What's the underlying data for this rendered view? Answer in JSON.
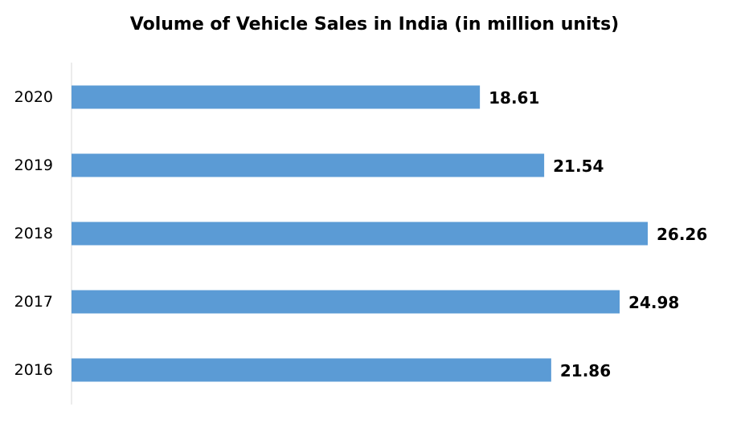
{
  "chart_data": {
    "type": "bar",
    "orientation": "horizontal",
    "title": "Volume of Vehicle Sales in India (in million units)",
    "categories": [
      "2020",
      "2019",
      "2018",
      "2017",
      "2016"
    ],
    "values": [
      18.61,
      21.54,
      26.26,
      24.98,
      21.86
    ],
    "value_labels": [
      "18.61",
      "21.54",
      "26.26",
      "24.98",
      "21.86"
    ],
    "xlabel": "",
    "ylabel": "",
    "xlim": [
      0,
      26.26
    ],
    "grid": false,
    "legend": "none",
    "bar_color": "#5b9bd5",
    "axis_color": "#d9d9d9"
  }
}
